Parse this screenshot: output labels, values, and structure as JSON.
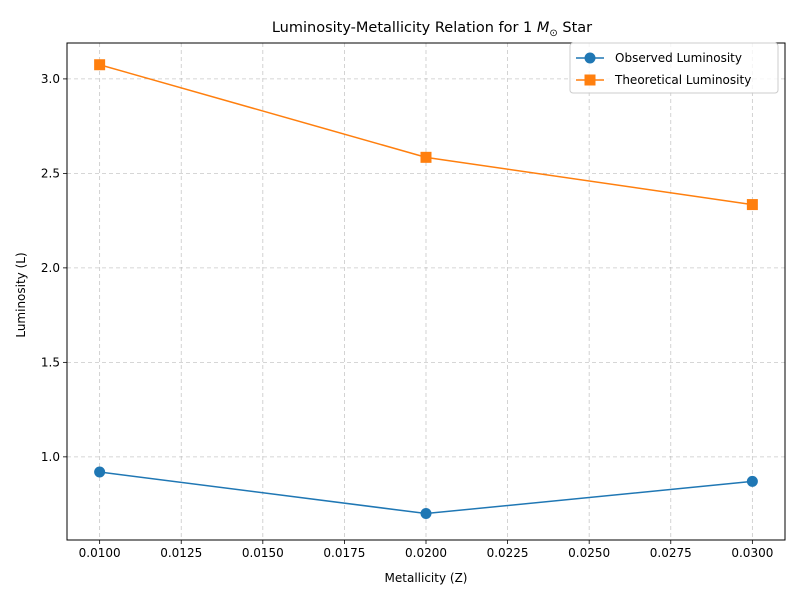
{
  "chart_data": {
    "type": "line",
    "title": "Luminosity-Metallicity Relation for 1 ",
    "title_math": "M",
    "title_sub": "⊙",
    "title_suffix": " Star",
    "xlabel": "Metallicity (Z)",
    "ylabel": "Luminosity (L)",
    "x": [
      0.01,
      0.02,
      0.03
    ],
    "xlim": [
      0.009,
      0.031
    ],
    "ylim": [
      0.56,
      3.19
    ],
    "xticks": [
      0.01,
      0.0125,
      0.015,
      0.0175,
      0.02,
      0.0225,
      0.025,
      0.0275,
      0.03
    ],
    "xtick_labels": [
      "0.0100",
      "0.0125",
      "0.0150",
      "0.0175",
      "0.0200",
      "0.0225",
      "0.0250",
      "0.0275",
      "0.0300"
    ],
    "yticks": [
      1.0,
      1.5,
      2.0,
      2.5,
      3.0
    ],
    "ytick_labels": [
      "1.0",
      "1.5",
      "2.0",
      "2.5",
      "3.0"
    ],
    "grid": true,
    "legend_position": "top-right",
    "series": [
      {
        "name": "Observed Luminosity",
        "marker": "circle",
        "color": "#1f77b4",
        "values": [
          0.92,
          0.7,
          0.87
        ]
      },
      {
        "name": "Theoretical Luminosity",
        "marker": "square",
        "color": "#ff7f0e",
        "values": [
          3.075,
          2.585,
          2.335
        ]
      }
    ]
  }
}
